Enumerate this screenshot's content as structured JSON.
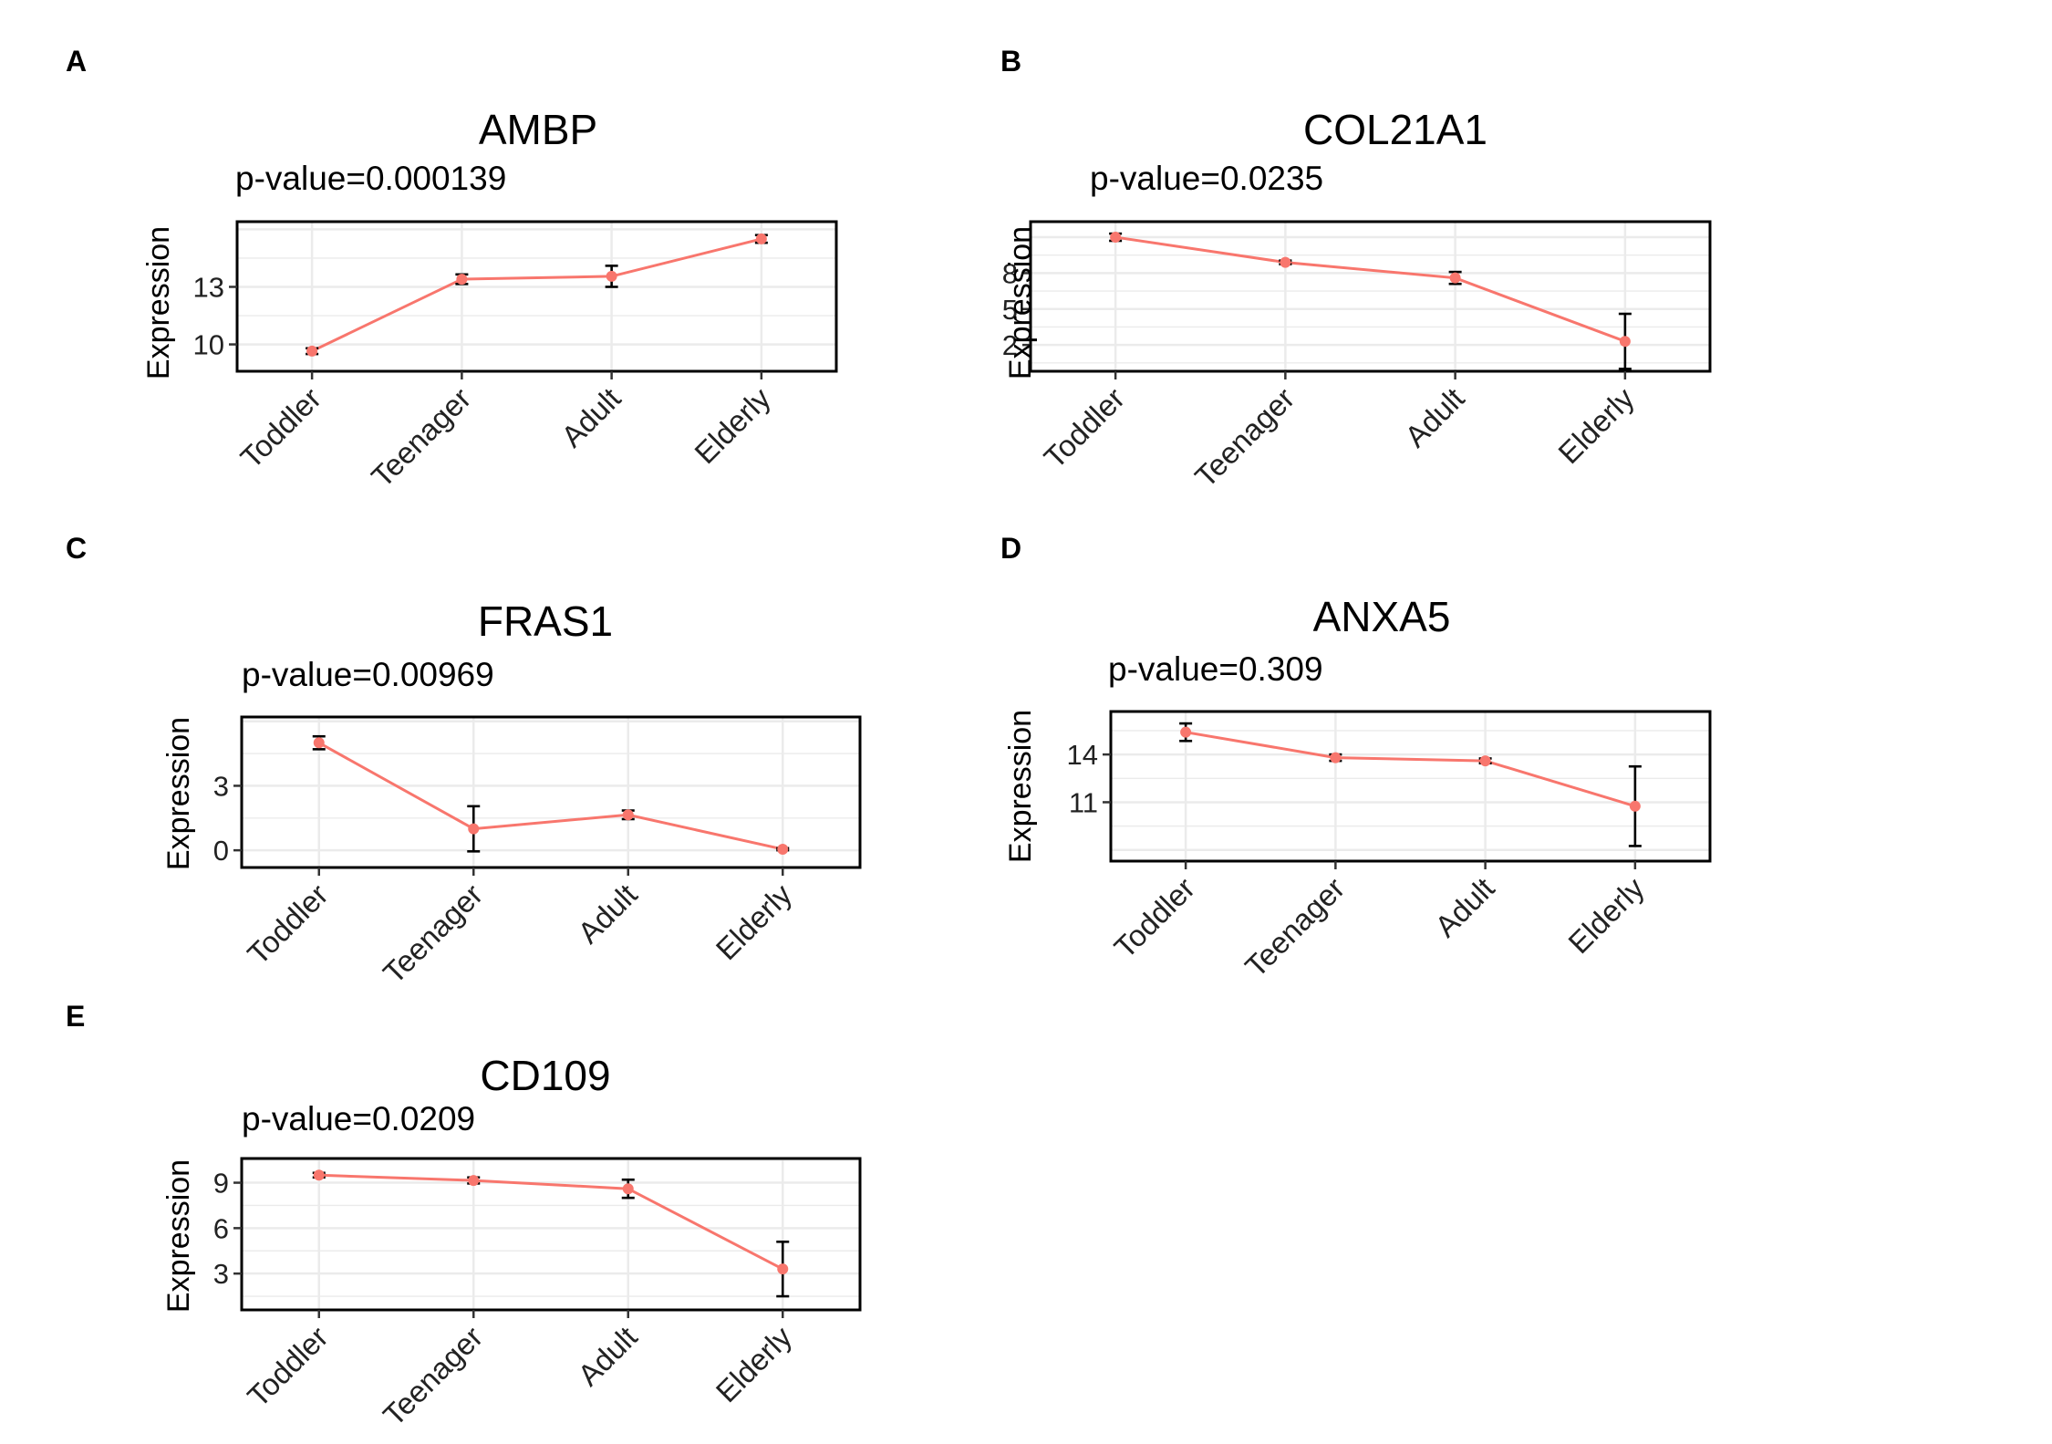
{
  "figure": {
    "colors": {
      "line": "#F8766D",
      "error_bar": "#000000",
      "grid": "#EBEBEB",
      "frame": "#000000"
    }
  },
  "chart_data": [
    {
      "panel": "A",
      "type": "line",
      "title": "AMBP",
      "subtitle": "p-value=0.000139",
      "ylabel": "Expression",
      "categories": [
        "Toddler",
        "Teenager",
        "Adult",
        "Elderly"
      ],
      "values": [
        9.65,
        13.4,
        13.55,
        15.5
      ],
      "error": [
        0.15,
        0.25,
        0.55,
        0.2
      ],
      "ylim": [
        8.6,
        16.4
      ],
      "yticks": [
        10,
        13
      ],
      "grid": true
    },
    {
      "panel": "B",
      "type": "line",
      "title": "COL21A1",
      "subtitle": "p-value=0.0235",
      "ylabel": "Expression",
      "categories": [
        "Toddler",
        "Teenager",
        "Adult",
        "Elderly"
      ],
      "values": [
        11,
        8.9,
        7.6,
        2.3
      ],
      "error": [
        0.3,
        0.15,
        0.5,
        2.3
      ],
      "ylim": [
        -0.2,
        12.3
      ],
      "yticks": [
        2,
        5,
        8
      ],
      "grid": true
    },
    {
      "panel": "C",
      "type": "line",
      "title": "FRAS1",
      "subtitle": "p-value=0.00969",
      "ylabel": "Expression",
      "categories": [
        "Toddler",
        "Teenager",
        "Adult",
        "Elderly"
      ],
      "values": [
        5,
        1,
        1.65,
        0.05
      ],
      "error": [
        0.3,
        1.05,
        0.2,
        0.05
      ],
      "ylim": [
        -0.8,
        6.2
      ],
      "yticks": [
        0,
        3
      ],
      "grid": true
    },
    {
      "panel": "D",
      "type": "line",
      "title": "ANXA5",
      "subtitle": "p-value=0.309",
      "ylabel": "Expression",
      "categories": [
        "Toddler",
        "Teenager",
        "Adult",
        "Elderly"
      ],
      "values": [
        15.4,
        13.8,
        13.6,
        10.75
      ],
      "error": [
        0.55,
        0.2,
        0.15,
        2.5
      ],
      "ylim": [
        7.3,
        16.7
      ],
      "yticks": [
        11,
        14
      ],
      "grid": true
    },
    {
      "panel": "E",
      "type": "line",
      "title": "CD109",
      "subtitle": "p-value=0.0209",
      "ylabel": "Expression",
      "categories": [
        "Toddler",
        "Teenager",
        "Adult",
        "Elderly"
      ],
      "values": [
        9.5,
        9.15,
        8.6,
        3.3
      ],
      "error": [
        0.15,
        0.2,
        0.6,
        1.8
      ],
      "ylim": [
        0.6,
        10.6
      ],
      "yticks": [
        3,
        6,
        9
      ],
      "grid": true
    }
  ]
}
